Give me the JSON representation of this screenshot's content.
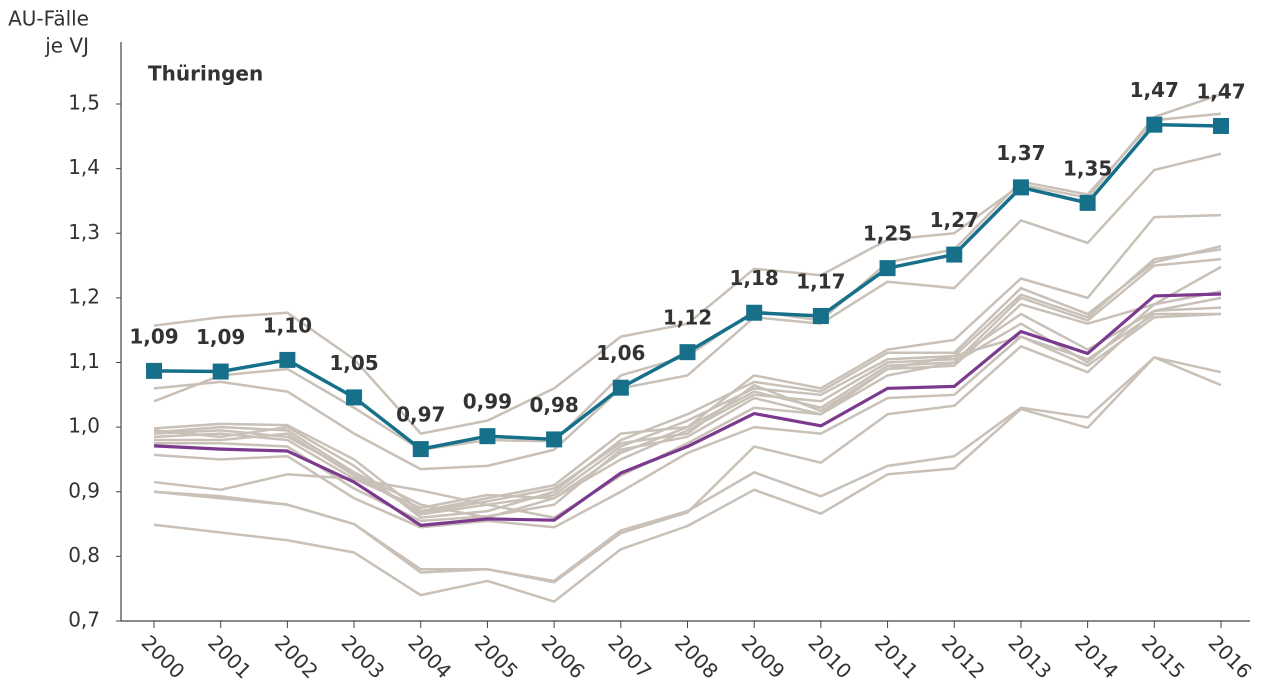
{
  "chart_data": {
    "type": "line",
    "title": "Thüringen",
    "ylabel": [
      "AU-Fälle",
      "je VJ"
    ],
    "categories": [
      "2000",
      "2001",
      "2002",
      "2003",
      "2004",
      "2005",
      "2006",
      "2007",
      "2008",
      "2009",
      "2010",
      "2011",
      "2012",
      "2013",
      "2014",
      "2015",
      "2016"
    ],
    "ylim": [
      0.7,
      1.5
    ],
    "yticks": [
      {
        "value": 0.7,
        "label": "0,7"
      },
      {
        "value": 0.8,
        "label": "0,8"
      },
      {
        "value": 0.9,
        "label": "0,9"
      },
      {
        "value": 1.0,
        "label": "1,0"
      },
      {
        "value": 1.1,
        "label": "1,1"
      },
      {
        "value": 1.2,
        "label": "1,2"
      },
      {
        "value": 1.3,
        "label": "1,3"
      },
      {
        "value": 1.4,
        "label": "1,4"
      },
      {
        "value": 1.5,
        "label": "1,5"
      }
    ],
    "series": [
      {
        "color": "#c9c0b7",
        "values": [
          1.157,
          1.17,
          1.177,
          1.105,
          0.99,
          1.01,
          1.06,
          1.14,
          1.16,
          1.245,
          1.235,
          1.29,
          1.3,
          1.375,
          1.355,
          1.48,
          1.515
        ]
      },
      {
        "color": "#c9c0b7",
        "values": [
          1.04,
          1.08,
          1.09,
          1.03,
          0.965,
          0.98,
          0.978,
          1.08,
          1.11,
          1.18,
          1.165,
          1.255,
          1.275,
          1.38,
          1.36,
          1.475,
          1.485
        ]
      },
      {
        "color": "#c9c0b7",
        "values": [
          1.06,
          1.07,
          1.055,
          0.99,
          0.935,
          0.94,
          0.965,
          1.06,
          1.08,
          1.17,
          1.16,
          1.225,
          1.215,
          1.32,
          1.285,
          1.398,
          1.423
        ]
      },
      {
        "color": "#c9c0b7",
        "values": [
          0.998,
          1.005,
          1.003,
          0.95,
          0.87,
          0.89,
          0.91,
          0.99,
          1.0,
          1.08,
          1.06,
          1.12,
          1.135,
          1.23,
          1.2,
          1.325,
          1.328
        ]
      },
      {
        "color": "#c9c0b7",
        "values": [
          0.995,
          0.985,
          1.0,
          0.94,
          0.86,
          0.87,
          0.9,
          0.98,
          1.02,
          1.07,
          1.055,
          1.115,
          1.115,
          1.215,
          1.175,
          1.255,
          1.28
        ]
      },
      {
        "color": "#c9c0b7",
        "values": [
          0.99,
          0.995,
          0.985,
          0.93,
          0.865,
          0.88,
          0.895,
          0.97,
          1.01,
          1.06,
          1.05,
          1.105,
          1.11,
          1.205,
          1.17,
          1.26,
          1.275
        ]
      },
      {
        "color": "#c9c0b7",
        "values": [
          0.985,
          0.99,
          0.98,
          0.92,
          0.875,
          0.895,
          0.89,
          0.96,
          1.0,
          1.055,
          1.03,
          1.095,
          1.1,
          1.2,
          1.165,
          1.25,
          1.26
        ]
      },
      {
        "color": "#c9c0b7",
        "values": [
          0.98,
          0.98,
          0.99,
          0.925,
          0.868,
          0.885,
          0.905,
          0.975,
          0.99,
          1.065,
          1.025,
          1.09,
          1.095,
          1.19,
          1.16,
          1.19,
          1.248
        ]
      },
      {
        "color": "#c9c0b7",
        "values": [
          0.975,
          0.975,
          0.97,
          0.905,
          0.855,
          0.862,
          0.88,
          0.965,
          0.985,
          1.045,
          1.02,
          1.08,
          1.1,
          1.16,
          1.1,
          1.19,
          1.21
        ]
      },
      {
        "color": "#c9c0b7",
        "values": [
          0.992,
          1.0,
          0.995,
          0.93,
          0.88,
          0.86,
          0.89,
          0.95,
          0.995,
          1.05,
          1.04,
          1.1,
          1.105,
          1.175,
          1.12,
          1.18,
          1.185
        ]
      },
      {
        "color": "#c9c0b7",
        "values": [
          0.957,
          0.95,
          0.955,
          0.89,
          0.845,
          0.855,
          0.845,
          0.9,
          0.96,
          1.0,
          0.99,
          1.045,
          1.05,
          1.14,
          1.105,
          1.175,
          1.175
        ]
      },
      {
        "color": "#c9c0b7",
        "values": [
          0.915,
          0.903,
          0.927,
          0.92,
          0.902,
          0.88,
          0.86,
          0.925,
          0.975,
          1.03,
          1.02,
          1.09,
          1.11,
          1.14,
          1.095,
          1.17,
          1.175
        ]
      },
      {
        "color": "#c9c0b7",
        "values": [
          0.9,
          0.893,
          0.88,
          0.85,
          0.78,
          0.78,
          0.76,
          0.836,
          0.868,
          0.97,
          0.945,
          1.02,
          1.033,
          1.125,
          1.085,
          1.18,
          1.2
        ]
      },
      {
        "color": "#c9c0b7",
        "values": [
          0.9,
          0.89,
          0.88,
          0.85,
          0.775,
          0.78,
          0.762,
          0.84,
          0.87,
          0.93,
          0.893,
          0.94,
          0.955,
          1.03,
          1.015,
          1.108,
          1.065
        ]
      },
      {
        "color": "#c9c0b7",
        "values": [
          0.849,
          0.837,
          0.825,
          0.806,
          0.74,
          0.762,
          0.73,
          0.811,
          0.847,
          0.903,
          0.866,
          0.927,
          0.936,
          1.028,
          0.999,
          1.108,
          1.085
        ]
      },
      {
        "color": "#7b3a8e",
        "values": [
          0.971,
          0.966,
          0.963,
          0.915,
          0.848,
          0.858,
          0.856,
          0.929,
          0.97,
          1.021,
          1.002,
          1.06,
          1.063,
          1.148,
          1.114,
          1.203,
          1.206
        ]
      },
      {
        "color": "#17708a",
        "markers": true,
        "values": [
          1.087,
          1.086,
          1.104,
          1.046,
          0.966,
          0.986,
          0.981,
          1.061,
          1.116,
          1.177,
          1.172,
          1.246,
          1.267,
          1.371,
          1.347,
          1.468,
          1.466
        ],
        "value_labels": [
          "1,09",
          "1,09",
          "1,10",
          "1,05",
          "0,97",
          "0,99",
          "0,98",
          "1,06",
          "1,12",
          "1,18",
          "1,17",
          "1,25",
          "1,27",
          "1,37",
          "1,35",
          "1,47",
          "1,47"
        ]
      }
    ]
  }
}
